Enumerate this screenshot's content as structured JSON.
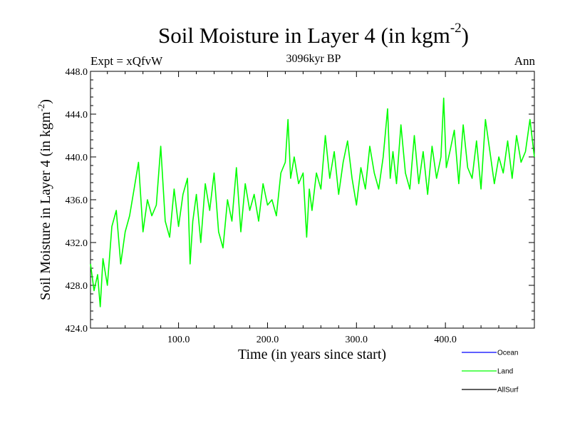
{
  "chart_data": {
    "type": "line",
    "title_main": "Soil Moisture in Layer 4 (in kgm",
    "title_sup": "-2",
    "title_end": ")",
    "left_label": "Expt = xQfvW",
    "center_label": "3096kyr BP",
    "right_label": "Ann",
    "xlabel": "Time (in years since start)",
    "ylabel_main": "Soil Moisture in Layer 4 (in kgm",
    "ylabel_sup": "-2",
    "ylabel_end": ")",
    "xlim": [
      1,
      500
    ],
    "ylim": [
      424.0,
      448.0
    ],
    "xticks": [
      100,
      200,
      300,
      400
    ],
    "xtick_labels": [
      "100.0",
      "200.0",
      "300.0",
      "400.0"
    ],
    "yticks": [
      424,
      428,
      432,
      436,
      440,
      444,
      448
    ],
    "ytick_labels": [
      "424.0",
      "428.0",
      "432.0",
      "436.0",
      "440.0",
      "444.0",
      "448.0"
    ],
    "legend": [
      {
        "name": "Ocean",
        "color": "#0000ff"
      },
      {
        "name": "Land",
        "color": "#00ff00"
      },
      {
        "name": "AllSurf",
        "color": "#000000"
      }
    ],
    "series": [
      {
        "name": "Land",
        "color": "#00ff00",
        "x": [
          1,
          5,
          9,
          12,
          15,
          20,
          25,
          30,
          35,
          40,
          45,
          50,
          55,
          60,
          65,
          70,
          75,
          80,
          85,
          90,
          95,
          100,
          105,
          110,
          113,
          116,
          120,
          125,
          130,
          135,
          140,
          145,
          150,
          155,
          160,
          165,
          170,
          175,
          180,
          185,
          190,
          195,
          200,
          205,
          210,
          215,
          220,
          223,
          226,
          230,
          235,
          240,
          244,
          247,
          250,
          255,
          260,
          265,
          270,
          275,
          280,
          285,
          290,
          295,
          300,
          305,
          310,
          315,
          320,
          325,
          330,
          335,
          338,
          341,
          345,
          350,
          355,
          360,
          365,
          370,
          375,
          380,
          385,
          390,
          395,
          398,
          401,
          405,
          410,
          415,
          420,
          425,
          430,
          435,
          440,
          445,
          450,
          455,
          460,
          465,
          470,
          475,
          480,
          485,
          490,
          495,
          500
        ],
        "values": [
          430.0,
          427.5,
          429.0,
          426.0,
          430.5,
          428.0,
          433.5,
          435.0,
          430.0,
          433.0,
          434.5,
          437.0,
          439.5,
          433.0,
          436.0,
          434.5,
          435.5,
          441.0,
          434.0,
          432.5,
          437.0,
          433.5,
          436.5,
          438.0,
          430.0,
          434.0,
          436.5,
          432.0,
          437.5,
          435.0,
          438.5,
          433.0,
          431.5,
          436.0,
          434.0,
          439.0,
          433.0,
          437.5,
          435.0,
          436.5,
          434.0,
          437.5,
          435.5,
          436.0,
          434.5,
          438.5,
          439.5,
          443.5,
          438.0,
          440.0,
          437.5,
          438.5,
          432.5,
          437.0,
          435.0,
          438.5,
          437.0,
          442.0,
          438.0,
          440.5,
          436.5,
          439.5,
          441.5,
          438.0,
          435.5,
          439.0,
          437.0,
          441.0,
          438.5,
          437.0,
          440.0,
          444.5,
          438.0,
          440.5,
          437.5,
          443.0,
          438.5,
          437.0,
          442.0,
          437.5,
          440.5,
          436.5,
          441.0,
          438.0,
          440.0,
          445.5,
          439.0,
          440.5,
          442.5,
          437.5,
          443.0,
          439.0,
          438.0,
          441.5,
          437.0,
          443.5,
          440.5,
          437.5,
          440.0,
          438.5,
          441.5,
          438.0,
          442.0,
          439.5,
          440.5,
          443.5,
          440.0
        ]
      }
    ]
  }
}
